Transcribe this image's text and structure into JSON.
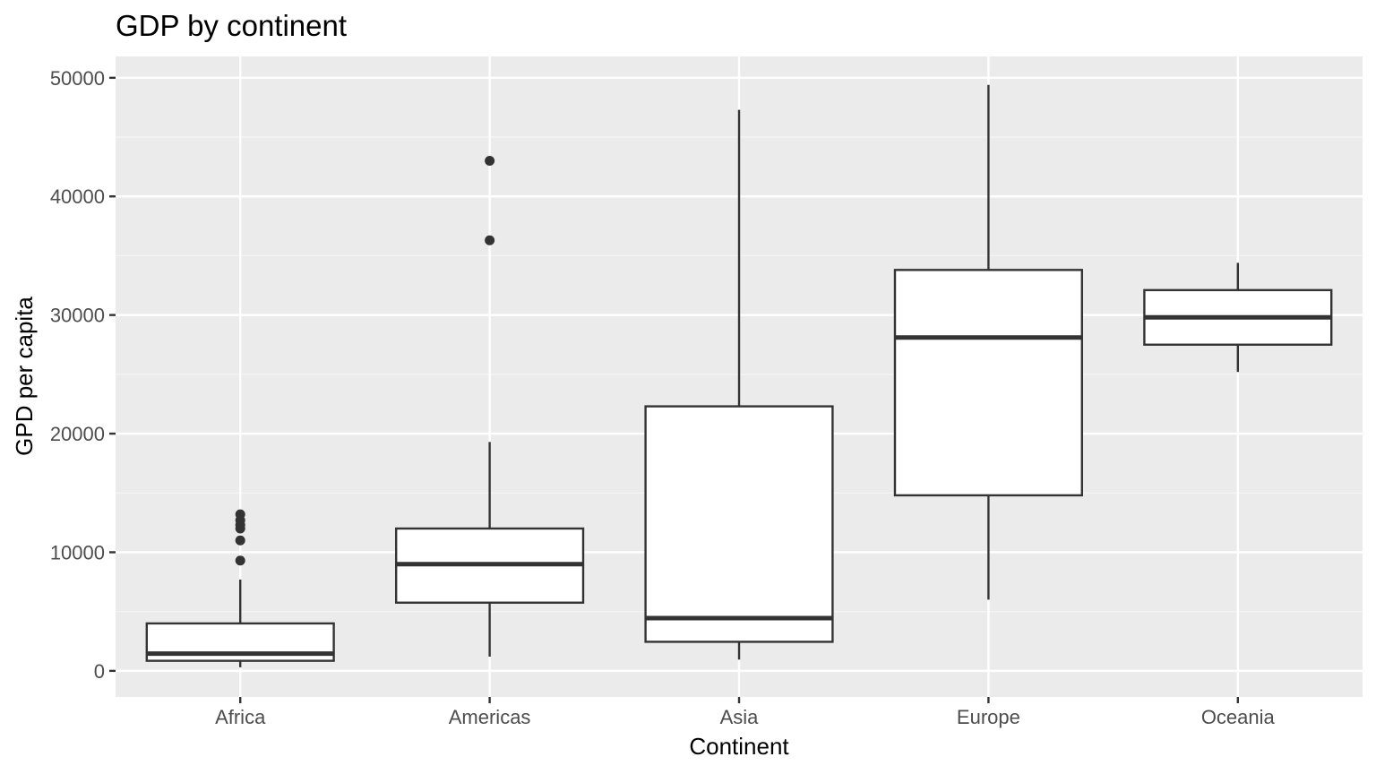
{
  "chart_data": {
    "type": "boxplot",
    "title": "GDP by continent",
    "xlabel": "Continent",
    "ylabel": "GPD per capita",
    "ylim": [
      -2200,
      51800
    ],
    "yticks": [
      0,
      10000,
      20000,
      30000,
      40000,
      50000
    ],
    "ytick_labels": [
      "0",
      "10000",
      "20000",
      "30000",
      "40000",
      "50000"
    ],
    "categories": [
      "Africa",
      "Americas",
      "Asia",
      "Europe",
      "Oceania"
    ],
    "boxes": [
      {
        "category": "Africa",
        "whisker_low": 300,
        "q1": 850,
        "median": 1450,
        "q3": 4000,
        "whisker_high": 7700,
        "outliers": [
          9300,
          11000,
          12000,
          12300,
          12700,
          13200
        ]
      },
      {
        "category": "Americas",
        "whisker_low": 1200,
        "q1": 5750,
        "median": 9000,
        "q3": 12000,
        "whisker_high": 19300,
        "outliers": [
          36300,
          43000
        ]
      },
      {
        "category": "Asia",
        "whisker_low": 950,
        "q1": 2450,
        "median": 4450,
        "q3": 22300,
        "whisker_high": 47300,
        "outliers": []
      },
      {
        "category": "Europe",
        "whisker_low": 6000,
        "q1": 14800,
        "median": 28100,
        "q3": 33800,
        "whisker_high": 49400,
        "outliers": []
      },
      {
        "category": "Oceania",
        "whisker_low": 25200,
        "q1": 27500,
        "median": 29800,
        "q3": 32100,
        "whisker_high": 34400,
        "outliers": []
      }
    ],
    "grid": true,
    "legend": "none",
    "colors": {
      "panel_background": "#ebebeb",
      "grid_major": "#ffffff",
      "grid_minor": "#f5f5f5",
      "box_fill": "#ffffff",
      "box_stroke": "#333333",
      "outlier": "#333333",
      "tick_label": "#4d4d4d",
      "tick_mark": "#333333"
    }
  }
}
